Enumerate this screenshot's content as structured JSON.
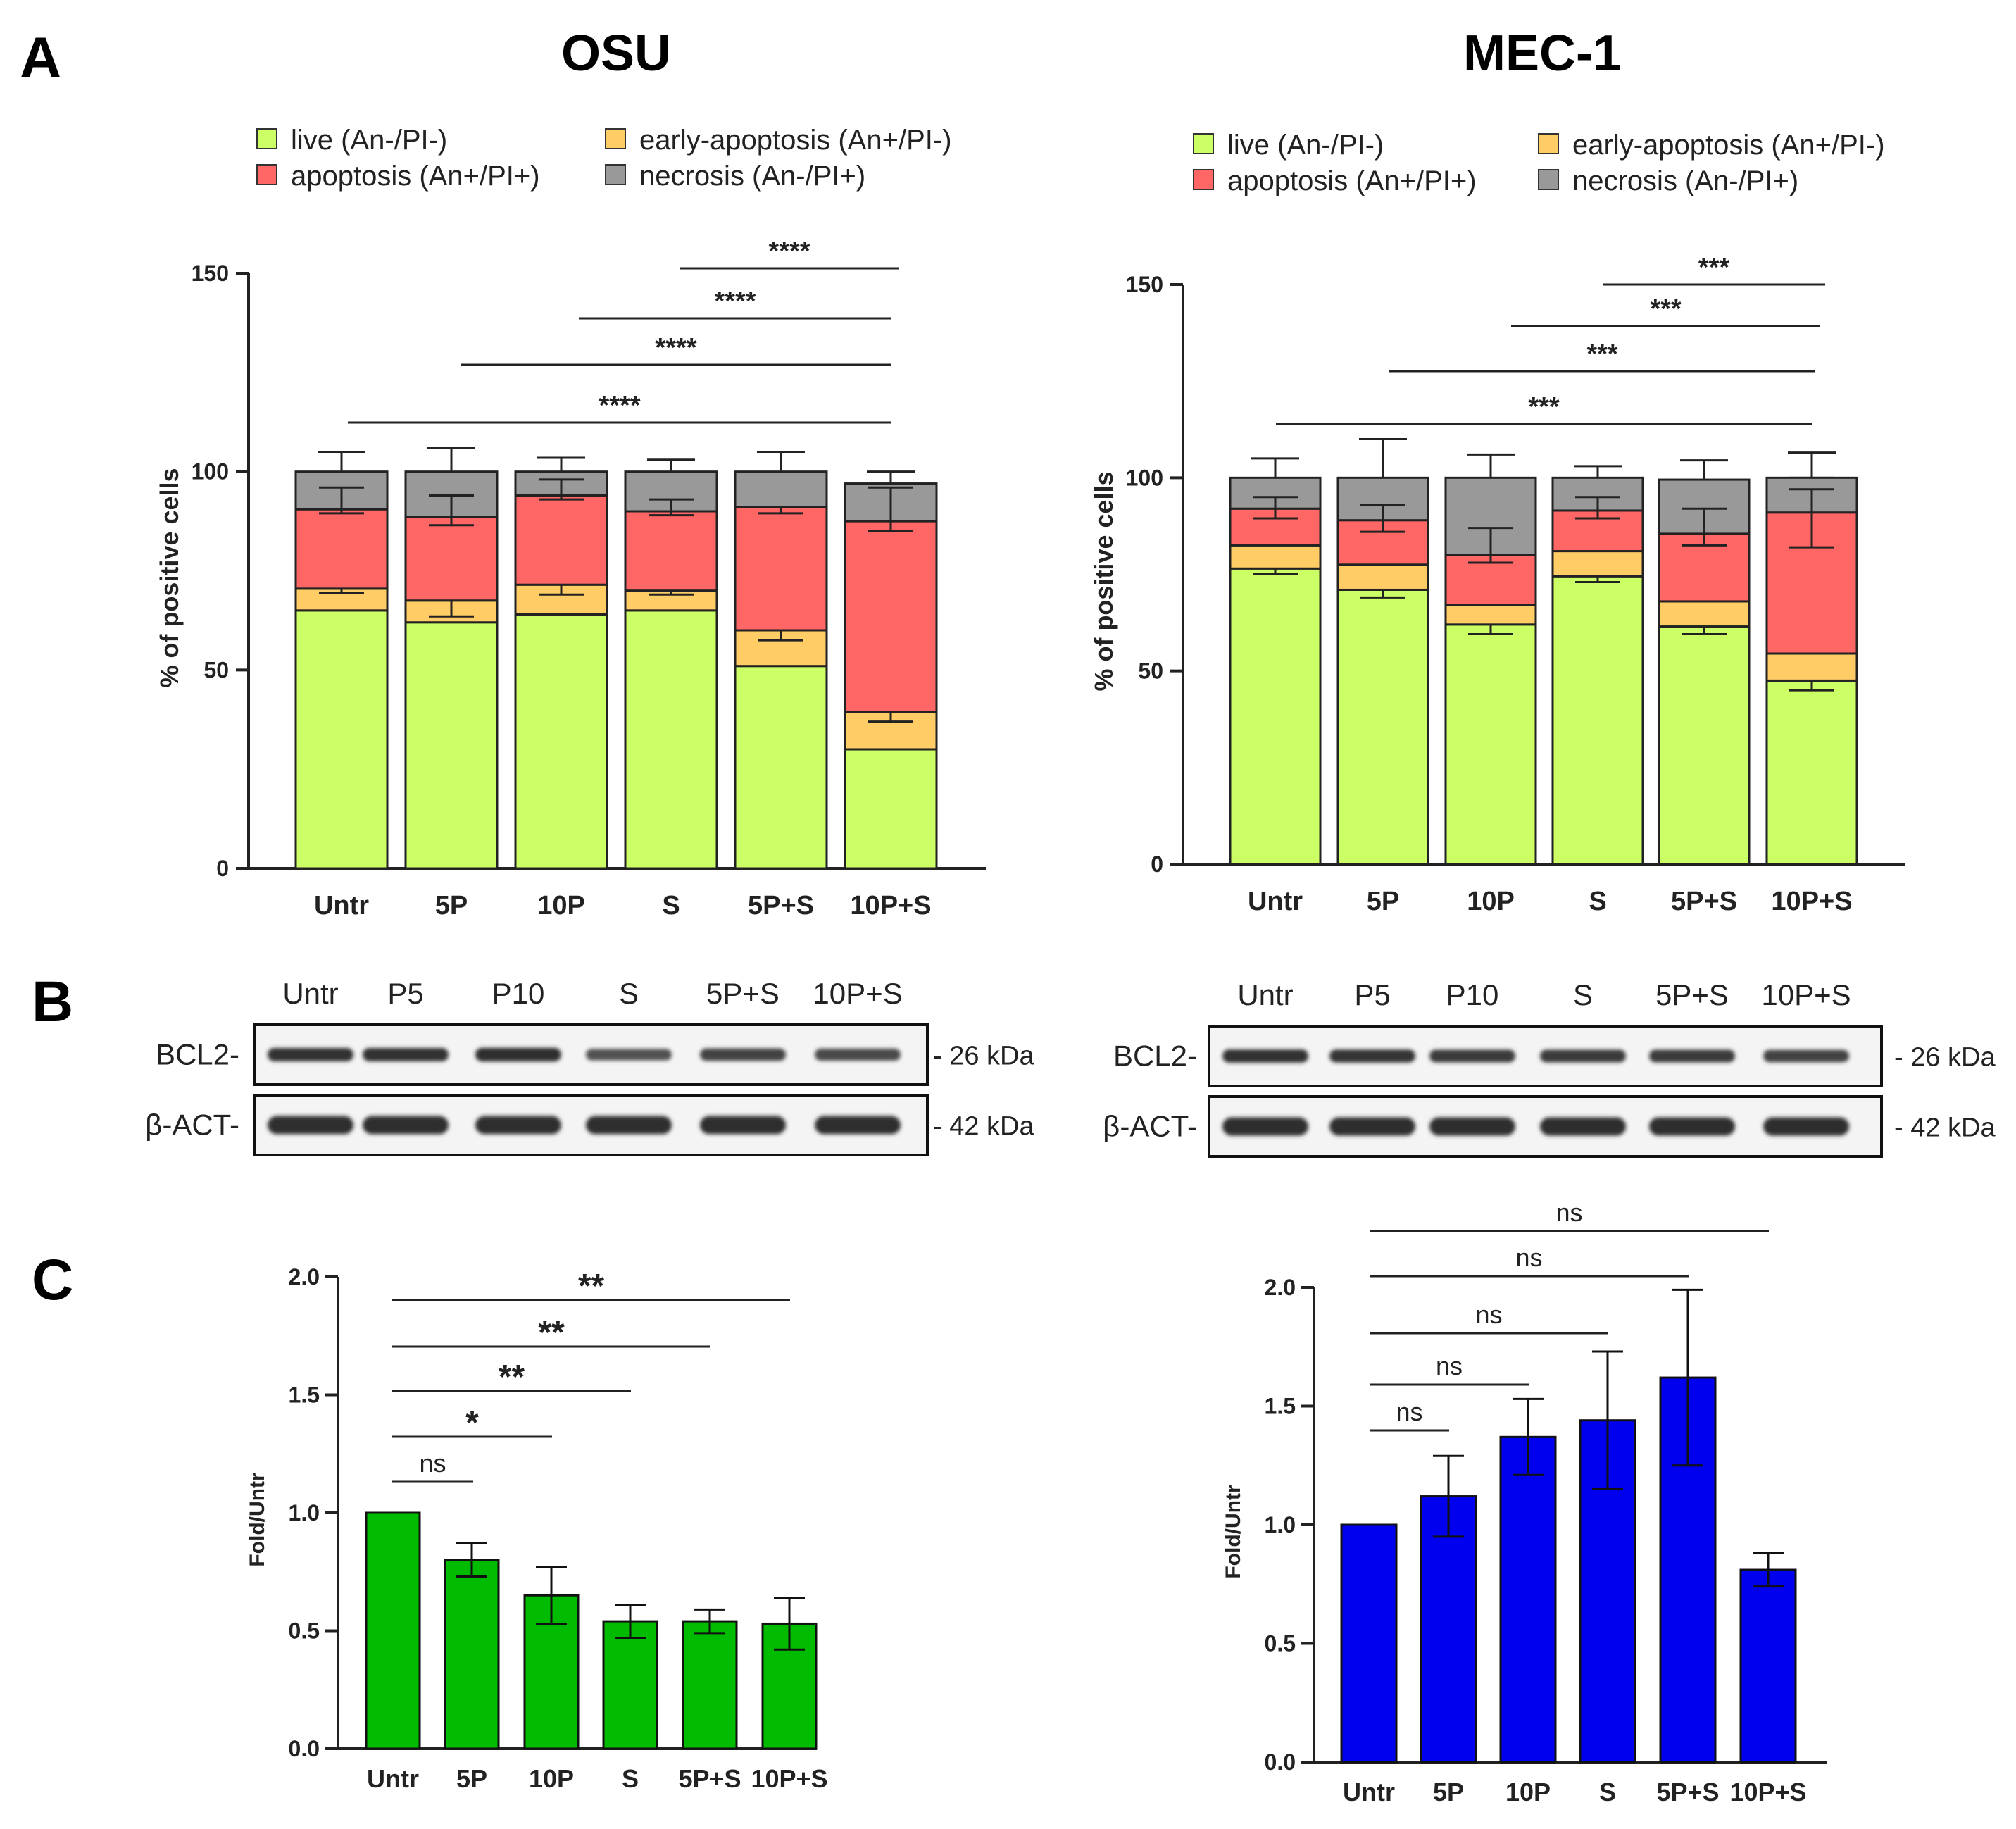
{
  "panel_labels": {
    "a": "A",
    "b": "B",
    "c": "C"
  },
  "colors": {
    "live": "#ccff66",
    "early": "#ffcc66",
    "apoptosis": "#ff6666",
    "necrosis": "#999999",
    "green_bar": "#00bb00",
    "blue_bar": "#0000ee"
  },
  "legend": [
    {
      "key": "live",
      "label": "live (An-/PI-)"
    },
    {
      "key": "early",
      "label": "early-apoptosis (An+/PI-)"
    },
    {
      "key": "apoptosis",
      "label": "apoptosis (An+/PI+)"
    },
    {
      "key": "necrosis",
      "label": "necrosis (An-/PI+)"
    }
  ],
  "chart_data": [
    {
      "id": "osu-stacked",
      "type": "bar",
      "stacked": true,
      "title": "OSU",
      "ylabel": "% of positive cells",
      "ylim": [
        0,
        150
      ],
      "yticks": [
        0,
        50,
        100,
        150
      ],
      "categories": [
        "Untr",
        "5P",
        "10P",
        "S",
        "5P+S",
        "10P+S"
      ],
      "series": [
        {
          "name": "live (An-/PI-)",
          "key": "live",
          "values": [
            65,
            62,
            64,
            65,
            51,
            30
          ],
          "errors": [
            0,
            0,
            0,
            0,
            0,
            0
          ]
        },
        {
          "name": "early-apoptosis (An+/PI-)",
          "key": "early",
          "values": [
            5.5,
            5.5,
            7.5,
            5,
            9,
            9.5
          ],
          "errors": [
            1,
            4,
            2.5,
            1,
            2.5,
            2.5
          ]
        },
        {
          "name": "apoptosis (An+/PI+)",
          "key": "apoptosis",
          "values": [
            20,
            21,
            22.5,
            20,
            31,
            48
          ],
          "errors": [
            1,
            2,
            1,
            1,
            1.5,
            2.5
          ]
        },
        {
          "name": "necrosis (An-/PI+)",
          "key": "necrosis",
          "values": [
            9.5,
            11.5,
            6,
            10,
            9,
            9.5
          ],
          "errors": [
            5,
            6,
            3.5,
            3,
            5,
            3
          ]
        }
      ],
      "inner_error_tops": [
        96,
        94,
        98,
        93,
        91,
        96
      ],
      "significance": [
        {
          "from": "Untr",
          "to": "10P+S",
          "label": "****"
        },
        {
          "from": "5P",
          "to": "10P+S",
          "label": "****"
        },
        {
          "from": "10P",
          "to": "10P+S",
          "label": "****"
        },
        {
          "from": "S",
          "to": "10P+S",
          "label": "****"
        }
      ]
    },
    {
      "id": "mec1-stacked",
      "type": "bar",
      "stacked": true,
      "title": "MEC-1",
      "ylabel": "% of positive cells",
      "ylim": [
        0,
        150
      ],
      "yticks": [
        0,
        50,
        100,
        150
      ],
      "categories": [
        "Untr",
        "5P",
        "10P",
        "S",
        "5P+S",
        "10P+S"
      ],
      "series": [
        {
          "name": "live (An-/PI-)",
          "key": "live",
          "values": [
            76.5,
            71,
            62,
            74.5,
            61.5,
            47.5
          ],
          "errors": [
            1.5,
            2,
            2.5,
            1.5,
            2,
            2.5
          ]
        },
        {
          "name": "early-apoptosis (An+/PI-)",
          "key": "early",
          "values": [
            6,
            6.5,
            5,
            6.5,
            6.5,
            7
          ],
          "errors": [
            0,
            0,
            0,
            0,
            0,
            0
          ]
        },
        {
          "name": "apoptosis (An+/PI+)",
          "key": "apoptosis",
          "values": [
            9.5,
            11.5,
            13,
            10.5,
            17.5,
            36.5
          ],
          "errors": [
            2.5,
            3,
            2,
            2,
            3,
            9
          ]
        },
        {
          "name": "necrosis (An-/PI+)",
          "key": "necrosis",
          "values": [
            8,
            11,
            20,
            8.5,
            14,
            9
          ],
          "errors": [
            5,
            10,
            6,
            3,
            5,
            6.5
          ]
        }
      ],
      "inner_error_tops": [
        95,
        93,
        87,
        95,
        92,
        97
      ],
      "significance": [
        {
          "from": "Untr",
          "to": "10P+S",
          "label": "***"
        },
        {
          "from": "5P",
          "to": "10P+S",
          "label": "***"
        },
        {
          "from": "10P",
          "to": "10P+S",
          "label": "***"
        },
        {
          "from": "S",
          "to": "10P+S",
          "label": "***"
        }
      ]
    },
    {
      "id": "osu-bcl2",
      "type": "bar",
      "ylabel": "Fold/Untr",
      "ylim": [
        0,
        2.0
      ],
      "yticks": [
        "0.0",
        "0.5",
        "1.0",
        "1.5",
        "2.0"
      ],
      "categories": [
        "Untr",
        "5P",
        "10P",
        "S",
        "5P+S",
        "10P+S"
      ],
      "values": [
        1.0,
        0.8,
        0.65,
        0.54,
        0.54,
        0.53
      ],
      "errors": [
        0,
        0.07,
        0.12,
        0.07,
        0.05,
        0.11
      ],
      "color_key": "green_bar",
      "significance": [
        {
          "from": "Untr",
          "to": "5P",
          "label": "ns"
        },
        {
          "from": "Untr",
          "to": "10P",
          "label": "*"
        },
        {
          "from": "Untr",
          "to": "S",
          "label": "**"
        },
        {
          "from": "Untr",
          "to": "5P+S",
          "label": "**"
        },
        {
          "from": "Untr",
          "to": "10P+S",
          "label": "**"
        }
      ]
    },
    {
      "id": "mec1-bcl2",
      "type": "bar",
      "ylabel": "Fold/Untr",
      "ylim": [
        0,
        2.0
      ],
      "yticks": [
        "0.0",
        "0.5",
        "1.0",
        "1.5",
        "2.0"
      ],
      "categories": [
        "Untr",
        "5P",
        "10P",
        "S",
        "5P+S",
        "10P+S"
      ],
      "values": [
        1.0,
        1.12,
        1.37,
        1.44,
        1.62,
        0.81
      ],
      "errors": [
        0,
        0.17,
        0.16,
        0.29,
        0.37,
        0.07
      ],
      "color_key": "blue_bar",
      "significance": [
        {
          "from": "Untr",
          "to": "5P",
          "label": "ns"
        },
        {
          "from": "Untr",
          "to": "10P",
          "label": "ns"
        },
        {
          "from": "Untr",
          "to": "S",
          "label": "ns"
        },
        {
          "from": "Untr",
          "to": "5P+S",
          "label": "ns"
        },
        {
          "from": "Untr",
          "to": "10P+S",
          "label": "ns"
        }
      ]
    }
  ],
  "blots": [
    {
      "id": "osu-blot",
      "lanes": [
        "Untr",
        "P5",
        "P10",
        "S",
        "5P+S",
        "10P+S"
      ],
      "rows": [
        {
          "label": "BCL2-",
          "size": "- 26 kDa",
          "intensity": [
            0.9,
            0.9,
            0.95,
            0.55,
            0.7,
            0.65
          ]
        },
        {
          "label": "β-ACT-",
          "size": "- 42 kDa",
          "intensity": [
            0.95,
            0.95,
            0.95,
            0.95,
            0.95,
            0.95
          ]
        }
      ]
    },
    {
      "id": "mec1-blot",
      "lanes": [
        "Untr",
        "P5",
        "P10",
        "S",
        "5P+S",
        "10P+S"
      ],
      "rows": [
        {
          "label": "BCL2-",
          "size": "- 26 kDa",
          "intensity": [
            0.9,
            0.85,
            0.8,
            0.8,
            0.8,
            0.7
          ]
        },
        {
          "label": "β-ACT-",
          "size": "- 42 kDa",
          "intensity": [
            0.95,
            0.95,
            0.95,
            0.95,
            0.95,
            0.95
          ]
        }
      ]
    }
  ]
}
